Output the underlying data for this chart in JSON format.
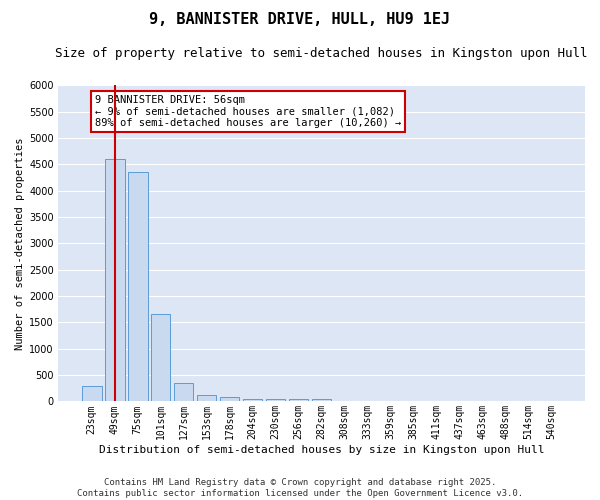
{
  "title": "9, BANNISTER DRIVE, HULL, HU9 1EJ",
  "subtitle": "Size of property relative to semi-detached houses in Kingston upon Hull",
  "xlabel": "Distribution of semi-detached houses by size in Kingston upon Hull",
  "ylabel": "Number of semi-detached properties",
  "categories": [
    "23sqm",
    "49sqm",
    "75sqm",
    "101sqm",
    "127sqm",
    "153sqm",
    "178sqm",
    "204sqm",
    "230sqm",
    "256sqm",
    "282sqm",
    "308sqm",
    "333sqm",
    "359sqm",
    "385sqm",
    "411sqm",
    "437sqm",
    "463sqm",
    "488sqm",
    "514sqm",
    "540sqm"
  ],
  "values": [
    300,
    4600,
    4350,
    1650,
    350,
    120,
    80,
    55,
    50,
    50,
    50,
    0,
    0,
    0,
    0,
    0,
    0,
    0,
    0,
    0,
    0
  ],
  "bar_color": "#c9daf0",
  "bar_edge_color": "#5b9bd5",
  "vline_color": "#cc0000",
  "vline_x_index": 1,
  "annotation_line1": "9 BANNISTER DRIVE: 56sqm",
  "annotation_line2": "← 9% of semi-detached houses are smaller (1,082)",
  "annotation_line3": "89% of semi-detached houses are larger (10,260) →",
  "annotation_box_color": "#ffffff",
  "annotation_box_edge": "#cc0000",
  "ylim": [
    0,
    6000
  ],
  "yticks": [
    0,
    500,
    1000,
    1500,
    2000,
    2500,
    3000,
    3500,
    4000,
    4500,
    5000,
    5500,
    6000
  ],
  "plot_bg_color": "#dce6f5",
  "fig_bg_color": "#ffffff",
  "grid_color": "#ffffff",
  "footer": "Contains HM Land Registry data © Crown copyright and database right 2025.\nContains public sector information licensed under the Open Government Licence v3.0.",
  "title_fontsize": 11,
  "subtitle_fontsize": 9,
  "annotation_fontsize": 7.5,
  "footer_fontsize": 6.5,
  "ylabel_fontsize": 7.5,
  "xlabel_fontsize": 8,
  "tick_fontsize": 7
}
